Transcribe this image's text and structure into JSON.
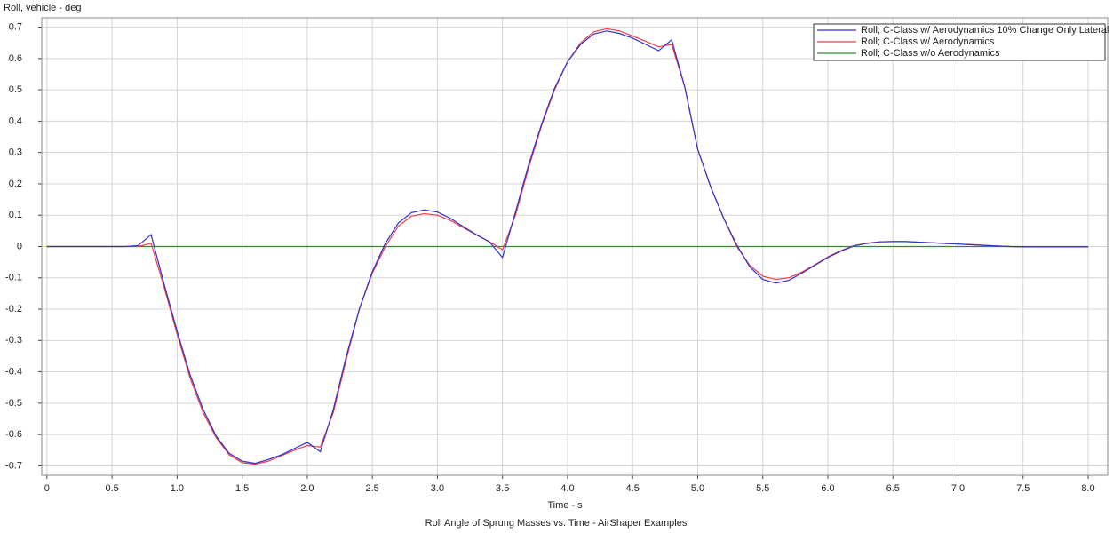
{
  "chart_data": {
    "type": "line",
    "title": "Roll Angle of Sprung Masses vs. Time - AirShaper Examples",
    "y_label": "Roll, vehicle - deg",
    "x_label": "Time - s",
    "x": [
      0,
      0.1,
      0.2,
      0.3,
      0.4,
      0.5,
      0.6,
      0.7,
      0.8,
      0.9,
      1,
      1.1,
      1.2,
      1.3,
      1.4,
      1.5,
      1.6,
      1.7,
      1.8,
      1.9,
      2,
      2.1,
      2.2,
      2.3,
      2.4,
      2.5,
      2.6,
      2.7,
      2.8,
      2.9,
      3,
      3.1,
      3.2,
      3.3,
      3.4,
      3.5,
      3.6,
      3.7,
      3.8,
      3.9,
      4,
      4.1,
      4.2,
      4.3,
      4.4,
      4.5,
      4.6,
      4.7,
      4.8,
      4.9,
      5,
      5.1,
      5.2,
      5.3,
      5.4,
      5.5,
      5.6,
      5.7,
      5.8,
      5.9,
      6,
      6.1,
      6.2,
      6.3,
      6.4,
      6.5,
      6.6,
      6.7,
      6.8,
      6.9,
      7,
      7.1,
      7.2,
      7.3,
      7.4,
      7.5,
      7.6,
      7.7,
      7.8,
      7.9,
      8
    ],
    "series": [
      {
        "name": "Roll; C-Class w/ Aerodynamics 10% Change Only Lateral",
        "color": "#3232c8",
        "values": [
          0,
          0,
          0,
          0,
          0,
          0,
          0,
          0.003,
          0.038,
          -0.12,
          -0.27,
          -0.41,
          -0.52,
          -0.605,
          -0.66,
          -0.685,
          -0.692,
          -0.68,
          -0.665,
          -0.645,
          -0.625,
          -0.655,
          -0.52,
          -0.35,
          -0.2,
          -0.08,
          0.01,
          0.075,
          0.108,
          0.117,
          0.11,
          0.09,
          0.063,
          0.038,
          0.015,
          -0.035,
          0.11,
          0.26,
          0.39,
          0.505,
          0.59,
          0.645,
          0.678,
          0.688,
          0.68,
          0.665,
          0.645,
          0.625,
          0.66,
          0.51,
          0.31,
          0.19,
          0.09,
          0.005,
          -0.065,
          -0.105,
          -0.117,
          -0.108,
          -0.085,
          -0.06,
          -0.035,
          -0.015,
          0.002,
          0.01,
          0.015,
          0.016,
          0.016,
          0.014,
          0.012,
          0.01,
          0.008,
          0.006,
          0.004,
          0.002,
          0,
          -0.001,
          -0.001,
          -0.001,
          -0.001,
          -0.001,
          -0.001
        ]
      },
      {
        "name": "Roll; C-Class w/ Aerodynamics",
        "color": "#f03c4b",
        "values": [
          0,
          0,
          0,
          0,
          0,
          0,
          0,
          0,
          0.01,
          -0.13,
          -0.28,
          -0.42,
          -0.53,
          -0.61,
          -0.665,
          -0.69,
          -0.695,
          -0.685,
          -0.668,
          -0.65,
          -0.635,
          -0.64,
          -0.53,
          -0.36,
          -0.2,
          -0.085,
          0,
          0.065,
          0.097,
          0.105,
          0.1,
          0.083,
          0.06,
          0.037,
          0.015,
          -0.01,
          0.1,
          0.25,
          0.385,
          0.5,
          0.59,
          0.65,
          0.685,
          0.695,
          0.688,
          0.672,
          0.655,
          0.637,
          0.645,
          0.51,
          0.31,
          0.19,
          0.09,
          0,
          -0.06,
          -0.095,
          -0.105,
          -0.1,
          -0.082,
          -0.058,
          -0.033,
          -0.013,
          0.003,
          0.011,
          0.015,
          0.016,
          0.016,
          0.014,
          0.012,
          0.01,
          0.008,
          0.006,
          0.004,
          0.002,
          0,
          -0.001,
          -0.001,
          -0.001,
          -0.001,
          -0.001,
          -0.001
        ]
      },
      {
        "name": "Roll; C-Class w/o Aerodynamics",
        "color": "#2e8b2e",
        "values": [
          0,
          0,
          0,
          0,
          0,
          0,
          0,
          0,
          0,
          0,
          0,
          0,
          0,
          0,
          0,
          0,
          0,
          0,
          0,
          0,
          0,
          0,
          0,
          0,
          0,
          0,
          0,
          0,
          0,
          0,
          0,
          0,
          0,
          0,
          0,
          0,
          0,
          0,
          0,
          0,
          0,
          0,
          0,
          0,
          0,
          0,
          0,
          0,
          0,
          0,
          0,
          0,
          0,
          0,
          0,
          0,
          0,
          0,
          0,
          0,
          0,
          0,
          0,
          0,
          0,
          0,
          0,
          0,
          0,
          0,
          0,
          0,
          0,
          0,
          0,
          0,
          0,
          0,
          0,
          0,
          0
        ]
      }
    ],
    "xlim": [
      -0.04,
      8.15
    ],
    "ylim": [
      -0.73,
      0.73
    ],
    "xticks": [
      0,
      0.5,
      {
        "value": 1,
        "label": "1.0"
      },
      1.5,
      {
        "value": 2,
        "label": "2.0"
      },
      2.5,
      {
        "value": 3,
        "label": "3.0"
      },
      3.5,
      {
        "value": 4,
        "label": "4.0"
      },
      4.5,
      {
        "value": 5,
        "label": "5.0"
      },
      5.5,
      {
        "value": 6,
        "label": "6.0"
      },
      6.5,
      {
        "value": 7,
        "label": "7.0"
      },
      7.5,
      {
        "value": 8,
        "label": "8.0"
      }
    ],
    "yticks": [
      0.7,
      0.6,
      0.5,
      0.4,
      0.3,
      0.2,
      0.1,
      0,
      -0.1,
      -0.2,
      -0.3,
      -0.4,
      -0.5,
      -0.6,
      -0.7
    ],
    "grid": true,
    "legend": "upper right"
  }
}
